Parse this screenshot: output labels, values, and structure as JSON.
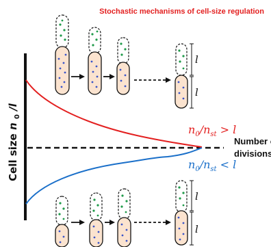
{
  "title": "Stochastic mechanisms of cell-size regulation",
  "axis": {
    "y_label_main": "Cell size",
    "y_label_var": "n",
    "y_label_sub": "0",
    "y_label_rest": "/l",
    "x_label_line1": "Number of",
    "x_label_line2": "divisions"
  },
  "curves": {
    "upper": {
      "label_n": "n",
      "label_n_sub": "0",
      "label_div": "/",
      "label_d": "n",
      "label_d_sub": "st",
      "label_rel": " > ",
      "label_l": "l",
      "color": "#e32020"
    },
    "lower": {
      "label_n": "n",
      "label_n_sub": "0",
      "label_div": "/",
      "label_d": "n",
      "label_d_sub": "st",
      "label_rel": " < ",
      "label_l": "l",
      "color": "#1a6fc9"
    }
  },
  "length_labels": {
    "top_daughter": "l",
    "top_mother": "l",
    "bottom_daughter": "l",
    "bottom_mother": "l"
  },
  "colors": {
    "cell_fill": "#fbe3cf",
    "blue_dot": "#3a55c8",
    "green_dot": "#1f9a4a",
    "axis": "#111111"
  }
}
